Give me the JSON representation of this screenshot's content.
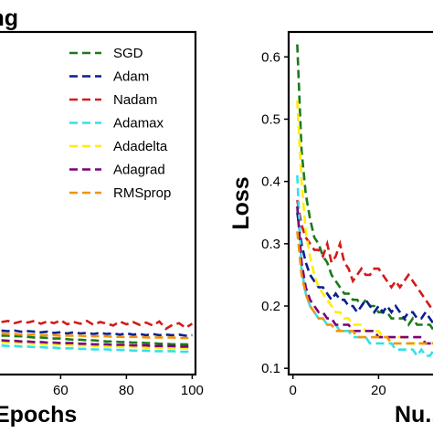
{
  "chart_data": [
    {
      "type": "line",
      "title": "...ng",
      "xlabel": "Epochs",
      "ylabel": "",
      "x_ticks": [
        "60",
        "80",
        "100"
      ],
      "xlim": [
        41,
        101
      ],
      "ylim": [
        0.1,
        0.7
      ],
      "grid": false,
      "legend_placement": "top-right",
      "x": [
        42,
        44,
        46,
        48,
        50,
        52,
        54,
        56,
        58,
        60,
        62,
        64,
        66,
        68,
        70,
        72,
        74,
        76,
        78,
        80,
        82,
        84,
        86,
        88,
        90,
        92,
        94,
        96,
        98,
        100
      ],
      "series": [
        {
          "name": "SGD",
          "color": "#1a7a1a",
          "values": [
            0.168,
            0.168,
            0.167,
            0.167,
            0.166,
            0.165,
            0.165,
            0.164,
            0.163,
            0.163,
            0.162,
            0.161,
            0.161,
            0.16,
            0.16,
            0.159,
            0.158,
            0.158,
            0.157,
            0.157,
            0.156,
            0.156,
            0.155,
            0.155,
            0.154,
            0.154,
            0.153,
            0.153,
            0.153,
            0.152
          ]
        },
        {
          "name": "Adam",
          "color": "#0a1f8f",
          "values": [
            0.177,
            0.176,
            0.177,
            0.175,
            0.176,
            0.175,
            0.174,
            0.175,
            0.173,
            0.174,
            0.172,
            0.174,
            0.172,
            0.173,
            0.171,
            0.173,
            0.171,
            0.172,
            0.17,
            0.172,
            0.17,
            0.171,
            0.169,
            0.171,
            0.169,
            0.17,
            0.169,
            0.17,
            0.168,
            0.169
          ]
        },
        {
          "name": "Nadam",
          "color": "#d41a1a",
          "values": [
            0.192,
            0.194,
            0.19,
            0.193,
            0.191,
            0.194,
            0.189,
            0.193,
            0.19,
            0.195,
            0.188,
            0.192,
            0.189,
            0.194,
            0.187,
            0.192,
            0.189,
            0.186,
            0.193,
            0.188,
            0.192,
            0.187,
            0.191,
            0.186,
            0.193,
            0.18,
            0.187,
            0.19,
            0.182,
            0.189
          ]
        },
        {
          "name": "Adamax",
          "color": "#33e0e8",
          "values": [
            0.151,
            0.15,
            0.15,
            0.149,
            0.149,
            0.148,
            0.148,
            0.147,
            0.147,
            0.146,
            0.146,
            0.146,
            0.145,
            0.145,
            0.144,
            0.144,
            0.144,
            0.143,
            0.143,
            0.143,
            0.142,
            0.142,
            0.142,
            0.141,
            0.141,
            0.141,
            0.141,
            0.14,
            0.14,
            0.14
          ]
        },
        {
          "name": "Adadelta",
          "color": "#ffee00",
          "values": [
            0.157,
            0.156,
            0.156,
            0.155,
            0.155,
            0.154,
            0.154,
            0.153,
            0.153,
            0.152,
            0.152,
            0.151,
            0.151,
            0.151,
            0.15,
            0.15,
            0.149,
            0.149,
            0.149,
            0.148,
            0.148,
            0.148,
            0.147,
            0.147,
            0.147,
            0.146,
            0.146,
            0.146,
            0.146,
            0.145
          ]
        },
        {
          "name": "Adagrad",
          "color": "#7a007a",
          "values": [
            0.16,
            0.159,
            0.159,
            0.158,
            0.158,
            0.157,
            0.157,
            0.156,
            0.156,
            0.155,
            0.155,
            0.155,
            0.154,
            0.154,
            0.153,
            0.153,
            0.153,
            0.152,
            0.152,
            0.152,
            0.151,
            0.151,
            0.151,
            0.15,
            0.15,
            0.15,
            0.15,
            0.149,
            0.149,
            0.149
          ]
        },
        {
          "name": "RMSprop",
          "color": "#f0940c",
          "values": [
            0.172,
            0.171,
            0.171,
            0.17,
            0.17,
            0.17,
            0.169,
            0.169,
            0.169,
            0.168,
            0.168,
            0.168,
            0.168,
            0.167,
            0.167,
            0.167,
            0.167,
            0.166,
            0.166,
            0.166,
            0.166,
            0.166,
            0.165,
            0.165,
            0.165,
            0.165,
            0.165,
            0.164,
            0.164,
            0.164
          ]
        }
      ]
    },
    {
      "type": "line",
      "title": "",
      "xlabel": "Nu...",
      "ylabel": "Loss",
      "x_ticks": [
        "0",
        "20"
      ],
      "y_ticks": [
        "0.1",
        "0.2",
        "0.3",
        "0.4",
        "0.5",
        "0.6"
      ],
      "xlim": [
        -1,
        34
      ],
      "ylim": [
        0.09,
        0.64
      ],
      "grid": false,
      "x": [
        1,
        2,
        3,
        4,
        5,
        6,
        7,
        8,
        9,
        10,
        11,
        12,
        13,
        14,
        15,
        16,
        17,
        18,
        19,
        20,
        21,
        22,
        23,
        24,
        25,
        26,
        27,
        28,
        29,
        30,
        31,
        32,
        33
      ],
      "series": [
        {
          "name": "SGD",
          "color": "#1a7a1a",
          "values": [
            0.62,
            0.45,
            0.38,
            0.34,
            0.31,
            0.3,
            0.28,
            0.27,
            0.25,
            0.24,
            0.23,
            0.22,
            0.22,
            0.21,
            0.21,
            0.2,
            0.21,
            0.2,
            0.2,
            0.19,
            0.19,
            0.19,
            0.18,
            0.18,
            0.18,
            0.18,
            0.17,
            0.18,
            0.17,
            0.17,
            0.17,
            0.17,
            0.16
          ]
        },
        {
          "name": "Adam",
          "color": "#0a1f8f",
          "values": [
            0.35,
            0.3,
            0.27,
            0.25,
            0.24,
            0.23,
            0.23,
            0.22,
            0.21,
            0.22,
            0.21,
            0.21,
            0.2,
            0.2,
            0.19,
            0.2,
            0.21,
            0.2,
            0.19,
            0.2,
            0.19,
            0.2,
            0.19,
            0.2,
            0.19,
            0.18,
            0.19,
            0.19,
            0.18,
            0.18,
            0.19,
            0.18,
            0.17
          ]
        },
        {
          "name": "Nadam",
          "color": "#d41a1a",
          "values": [
            0.37,
            0.33,
            0.31,
            0.3,
            0.29,
            0.29,
            0.28,
            0.3,
            0.27,
            0.28,
            0.3,
            0.27,
            0.26,
            0.24,
            0.25,
            0.26,
            0.25,
            0.25,
            0.26,
            0.26,
            0.25,
            0.24,
            0.23,
            0.24,
            0.23,
            0.24,
            0.25,
            0.24,
            0.23,
            0.22,
            0.21,
            0.2,
            0.19
          ]
        },
        {
          "name": "Adamax",
          "color": "#33e0e8",
          "values": [
            0.41,
            0.26,
            0.22,
            0.2,
            0.19,
            0.18,
            0.18,
            0.17,
            0.17,
            0.17,
            0.16,
            0.16,
            0.16,
            0.15,
            0.15,
            0.15,
            0.15,
            0.14,
            0.14,
            0.14,
            0.14,
            0.14,
            0.14,
            0.13,
            0.13,
            0.13,
            0.13,
            0.13,
            0.12,
            0.13,
            0.12,
            0.12,
            0.13
          ]
        },
        {
          "name": "Adadelta",
          "color": "#ffee00",
          "values": [
            0.53,
            0.4,
            0.32,
            0.28,
            0.25,
            0.23,
            0.22,
            0.21,
            0.2,
            0.19,
            0.19,
            0.18,
            0.18,
            0.17,
            0.17,
            0.17,
            0.16,
            0.16,
            0.16,
            0.16,
            0.15,
            0.15,
            0.15,
            0.15,
            0.15,
            0.15,
            0.14,
            0.14,
            0.14,
            0.14,
            0.14,
            0.14,
            0.14
          ]
        },
        {
          "name": "Adagrad",
          "color": "#7a007a",
          "values": [
            0.36,
            0.27,
            0.23,
            0.21,
            0.2,
            0.19,
            0.19,
            0.18,
            0.18,
            0.17,
            0.17,
            0.17,
            0.17,
            0.16,
            0.16,
            0.16,
            0.16,
            0.16,
            0.16,
            0.15,
            0.15,
            0.15,
            0.15,
            0.15,
            0.15,
            0.15,
            0.15,
            0.15,
            0.15,
            0.15,
            0.14,
            0.14,
            0.14
          ]
        },
        {
          "name": "RMSprop",
          "color": "#f0940c",
          "values": [
            0.32,
            0.25,
            0.22,
            0.2,
            0.19,
            0.18,
            0.18,
            0.17,
            0.17,
            0.16,
            0.16,
            0.16,
            0.16,
            0.16,
            0.15,
            0.15,
            0.15,
            0.15,
            0.15,
            0.15,
            0.15,
            0.15,
            0.14,
            0.14,
            0.14,
            0.14,
            0.14,
            0.14,
            0.14,
            0.14,
            0.14,
            0.14,
            0.14
          ]
        }
      ]
    }
  ]
}
